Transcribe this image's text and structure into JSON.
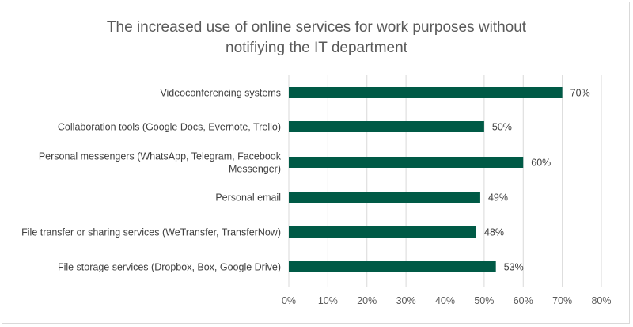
{
  "chart_data": {
    "type": "bar",
    "orientation": "horizontal",
    "title_lines": [
      "The increased use of online services for work purposes without",
      "notifiying the IT department"
    ],
    "categories": [
      [
        "Videoconferencing systems"
      ],
      [
        "Collaboration tools (Google Docs, Evernote, Trello)"
      ],
      [
        "Personal messengers (WhatsApp, Telegram, Facebook",
        "Messenger)"
      ],
      [
        "Personal email"
      ],
      [
        "File transfer or sharing  services (WeTransfer, TransferNow)"
      ],
      [
        "File storage services (Dropbox, Box, Google Drive)"
      ]
    ],
    "values": [
      70,
      50,
      60,
      49,
      48,
      53
    ],
    "value_labels": [
      "70%",
      "50%",
      "60%",
      "49%",
      "48%",
      "53%"
    ],
    "x_ticks": [
      "0%",
      "10%",
      "20%",
      "30%",
      "40%",
      "50%",
      "60%",
      "70%",
      "80%"
    ],
    "xlim": [
      0,
      80
    ],
    "bar_color": "#005a46",
    "grid_color": "#d9d9d9",
    "grid": true,
    "legend": "none"
  }
}
